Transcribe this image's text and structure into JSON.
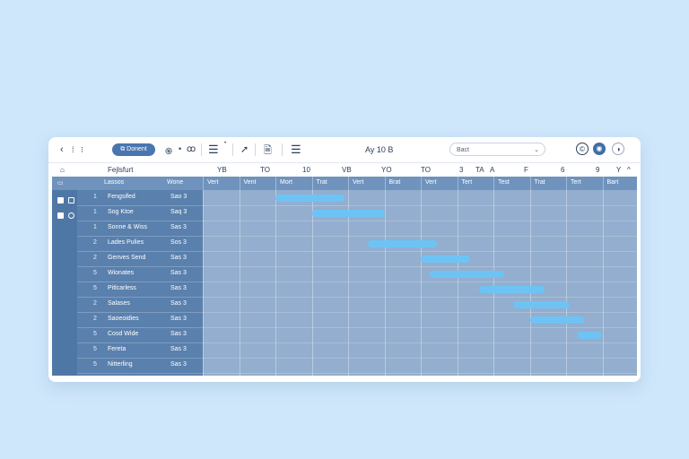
{
  "toolbar": {
    "nav_back": "‹",
    "nav_a": "⁞",
    "nav_b": "⁝",
    "primary_button": "⧉ Donent",
    "icon_a": "֍",
    "icon_dot": "•",
    "icon_b": "ꝏ",
    "list_icon_1": "☰",
    "list_sup_1": "•",
    "share_icon": "➚",
    "doc_icon": "🗎",
    "list_icon_2": "☰",
    "title": "Ay 10 B",
    "search_value": "Bact",
    "search_chevron": "⌄",
    "btn1": "©",
    "btn2": "◉",
    "btn3": "◑"
  },
  "header": {
    "home": "⌂",
    "project": "Fejlsfurt",
    "cols": [
      "YB",
      "TO",
      "10",
      "VB",
      "YO",
      "TO",
      "3",
      "TA",
      "A",
      "F",
      "6",
      "9",
      "Y",
      "^"
    ]
  },
  "subheader": {
    "left_icon": "▭",
    "col1": "Lassos",
    "col2": "Wone",
    "days": [
      "Vert",
      "Vent",
      "Mort",
      "Trat",
      "Vert",
      "Brat",
      "Vert",
      "Tert",
      "Test",
      "Trat",
      "Tert",
      "Bart"
    ]
  },
  "rows": [
    {
      "num": "1",
      "name": "Fengsifed",
      "dur": "Sao 3"
    },
    {
      "num": "1",
      "name": "Sog Ktoe",
      "dur": "Saq 3"
    },
    {
      "num": "1",
      "name": "Sonne & Wiss",
      "dur": "Sas 3"
    },
    {
      "num": "2",
      "name": "Lades Pulies",
      "dur": "Sos 3"
    },
    {
      "num": "2",
      "name": "Genves Send",
      "dur": "Sas 3"
    },
    {
      "num": "5",
      "name": "Wionates",
      "dur": "Sas 3"
    },
    {
      "num": "5",
      "name": "Pitlcarless",
      "dur": "Sas 3"
    },
    {
      "num": "2",
      "name": "Salases",
      "dur": "Sas 3"
    },
    {
      "num": "2",
      "name": "Saoeoidies",
      "dur": "Sas 3"
    },
    {
      "num": "5",
      "name": "Cosd Wide",
      "dur": "Sas 3"
    },
    {
      "num": "5",
      "name": "Fereta",
      "dur": "Sas 3"
    },
    {
      "num": "5",
      "name": "Nitterling",
      "dur": "Sas 3"
    }
  ],
  "tasks": [
    {
      "start": 2.0,
      "end": 3.9
    },
    {
      "start": 3.0,
      "end": 5.0
    },
    {
      "start": 4.55,
      "end": 6.45
    },
    {
      "start": 6.0,
      "end": 7.35
    },
    {
      "start": 6.25,
      "end": 8.3
    },
    {
      "start": 7.6,
      "end": 9.4
    },
    {
      "start": 8.55,
      "end": 10.1
    },
    {
      "start": 9.0,
      "end": 10.5
    },
    {
      "start": 10.3,
      "end": 11.0
    }
  ],
  "colors": {
    "bar": "#6ec3f5",
    "left_panel": "#5a80ad",
    "grid": "#93aece",
    "accent_button": "#4a76b0"
  }
}
